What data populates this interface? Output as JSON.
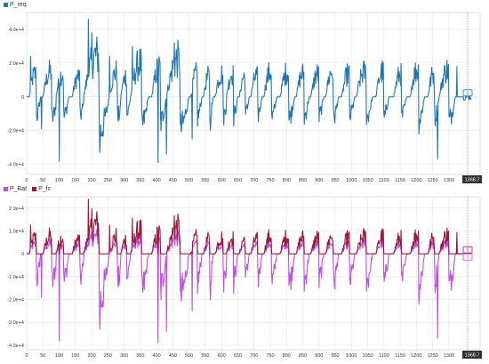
{
  "panels": [
    {
      "legend": [
        {
          "name": "P_req",
          "color": "#1f77b4"
        }
      ],
      "cursor_time": "1368.7",
      "y_ticks": [
        {
          "v": 40000,
          "label": "4.0e+4"
        },
        {
          "v": 20000,
          "label": "2.0e+4"
        },
        {
          "v": 0,
          "label": "0"
        },
        {
          "v": -20000,
          "label": "-2.0e+4"
        },
        {
          "v": -40000,
          "label": "-4.0e+4"
        }
      ],
      "cursor_markers": [
        {
          "label": "0",
          "color": "#1f77b4"
        }
      ]
    },
    {
      "legend": [
        {
          "name": "P_Bat",
          "color": "#c050e8"
        },
        {
          "name": "P_fc",
          "color": "#9b1a3c"
        }
      ],
      "cursor_time": "1368.7",
      "y_ticks": [
        {
          "v": 20000,
          "label": "2.0e+4"
        },
        {
          "v": 10000,
          "label": "1.0e+4"
        },
        {
          "v": 0,
          "label": "0"
        },
        {
          "v": -10000,
          "label": "-1.0e+4"
        },
        {
          "v": -20000,
          "label": "-2.0e+4"
        },
        {
          "v": -30000,
          "label": "-3.0e+4"
        },
        {
          "v": -40000,
          "label": "-4.0e+4"
        }
      ],
      "cursor_markers": [
        {
          "label": "0",
          "color": "#9b1a3c"
        },
        {
          "label": "0",
          "color": "#c050e8"
        }
      ]
    }
  ],
  "x_ticks": [
    "0",
    "50",
    "100",
    "150",
    "200",
    "250",
    "300",
    "350",
    "400",
    "450",
    "500",
    "550",
    "600",
    "650",
    "700",
    "750",
    "800",
    "850",
    "900",
    "950",
    "1000",
    "1050",
    "1100",
    "1150",
    "1200",
    "1250",
    "1300"
  ],
  "colors": {
    "grid": "#e6e6e6",
    "axis_bg": "#ffffff",
    "border": "#cfcfcf"
  }
}
